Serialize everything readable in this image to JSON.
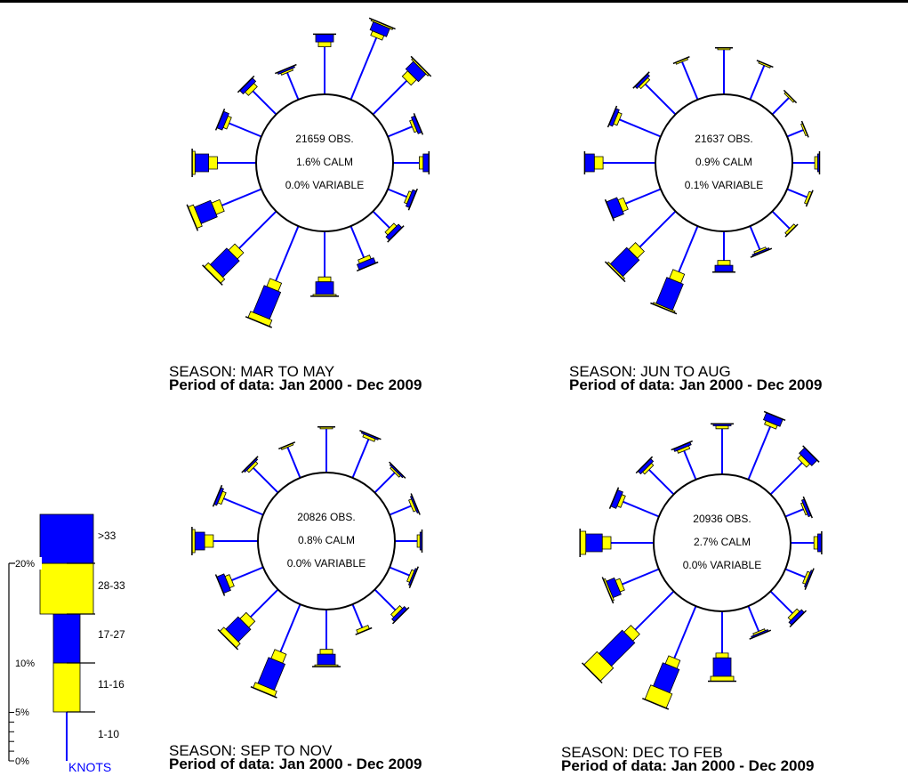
{
  "chart_data": {
    "type": "wind-rose",
    "direction_order": [
      "N",
      "NNE",
      "NE",
      "ENE",
      "E",
      "ESE",
      "SE",
      "SSE",
      "S",
      "SSW",
      "SW",
      "WSW",
      "W",
      "WNW",
      "NW",
      "NNW"
    ],
    "speed_classes": [
      "1-10",
      "11-16",
      "17-27",
      "28-33",
      ">33"
    ],
    "colors": {
      "spoke": "#0000ff",
      "yellow": "#ffff00",
      "blue": "#0000ff",
      "outline": "#000000"
    },
    "legend": {
      "unit_label": "KNOTS",
      "scale_labels": [
        {
          "pct": 0,
          "label": "0%"
        },
        {
          "pct": 5,
          "label": "5%"
        },
        {
          "pct": 10,
          "label": "10%"
        },
        {
          "pct": 20,
          "label": "20%"
        }
      ],
      "speed_labels": [
        {
          "label": "1-10"
        },
        {
          "label": "11-16"
        },
        {
          "label": "17-27"
        },
        {
          "label": "28-33"
        },
        {
          "label": ">33"
        }
      ]
    },
    "roses": [
      {
        "season": "SEASON: MAR TO MAY",
        "period": "Period of data: Jan 2000 - Dec 2009",
        "obs": "21659 OBS.",
        "calm": "1.6% CALM",
        "variable": "0.0% VARIABLE",
        "directions": [
          {
            "dir": "N",
            "pct": [
              4.9,
              0.5,
              0.8,
              0,
              0
            ]
          },
          {
            "dir": "NNE",
            "pct": [
              6.9,
              0.5,
              0.9,
              0.1,
              0
            ]
          },
          {
            "dir": "NE",
            "pct": [
              4.9,
              0.8,
              1.1,
              0.2,
              0
            ]
          },
          {
            "dir": "ENE",
            "pct": [
              2.7,
              0.3,
              0.4,
              0,
              0
            ]
          },
          {
            "dir": "E",
            "pct": [
              2.7,
              0.4,
              0.6,
              0,
              0
            ]
          },
          {
            "dir": "ESE",
            "pct": [
              2.1,
              0.3,
              0.4,
              0,
              0
            ]
          },
          {
            "dir": "SE",
            "pct": [
              2.4,
              0.4,
              0.5,
              0,
              0
            ]
          },
          {
            "dir": "SSE",
            "pct": [
              3.5,
              0.4,
              0.6,
              0,
              0
            ]
          },
          {
            "dir": "S",
            "pct": [
              4.7,
              0.5,
              1.3,
              0.1,
              0
            ]
          },
          {
            "dir": "SSW",
            "pct": [
              6.1,
              0.9,
              3.0,
              0.7,
              0
            ]
          },
          {
            "dir": "SW",
            "pct": [
              5.4,
              0.9,
              2.4,
              0.6,
              0
            ]
          },
          {
            "dir": "WSW",
            "pct": [
              4.4,
              0.9,
              1.8,
              0.6,
              0
            ]
          },
          {
            "dir": "W",
            "pct": [
              4.0,
              0.9,
              1.4,
              0.3,
              0
            ]
          },
          {
            "dir": "WNW",
            "pct": [
              3.6,
              0.4,
              0.6,
              0,
              0
            ]
          },
          {
            "dir": "NW",
            "pct": [
              3.4,
              0.5,
              0.5,
              0,
              0
            ]
          },
          {
            "dir": "NNW",
            "pct": [
              3.0,
              0.2,
              0.2,
              0,
              0
            ]
          }
        ]
      },
      {
        "season": "SEASON: JUN TO AUG",
        "period": "Period of data: Jan 2000 - Dec 2009",
        "obs": "21637 OBS.",
        "calm": "0.9% CALM",
        "variable": "0.1% VARIABLE",
        "directions": [
          {
            "dir": "N",
            "pct": [
              4.6,
              0.2,
              0,
              0,
              0
            ]
          },
          {
            "dir": "NNE",
            "pct": [
              3.8,
              0.2,
              0,
              0,
              0
            ]
          },
          {
            "dir": "NE",
            "pct": [
              2.4,
              0.2,
              0,
              0,
              0
            ]
          },
          {
            "dir": "ENE",
            "pct": [
              1.8,
              0.2,
              0,
              0,
              0
            ]
          },
          {
            "dir": "E",
            "pct": [
              2.3,
              0.3,
              0.2,
              0,
              0
            ]
          },
          {
            "dir": "ESE",
            "pct": [
              2.2,
              0.3,
              0,
              0,
              0
            ]
          },
          {
            "dir": "SE",
            "pct": [
              2.5,
              0.3,
              0,
              0,
              0
            ]
          },
          {
            "dir": "SSE",
            "pct": [
              2.6,
              0.2,
              0.1,
              0,
              0
            ]
          },
          {
            "dir": "S",
            "pct": [
              3.0,
              0.5,
              0.7,
              0,
              0
            ]
          },
          {
            "dir": "SSW",
            "pct": [
              5.1,
              1.0,
              2.9,
              0.1,
              0
            ]
          },
          {
            "dir": "SW",
            "pct": [
              5.2,
              1.0,
              2.4,
              0.2,
              0
            ]
          },
          {
            "dir": "WSW",
            "pct": [
              3.9,
              0.6,
              1.2,
              0,
              0
            ]
          },
          {
            "dir": "W",
            "pct": [
              5.4,
              0.9,
              1.0,
              0,
              0
            ]
          },
          {
            "dir": "WNW",
            "pct": [
              4.6,
              0.4,
              0.4,
              0,
              0
            ]
          },
          {
            "dir": "NW",
            "pct": [
              4.4,
              0.3,
              0.3,
              0,
              0
            ]
          },
          {
            "dir": "NNW",
            "pct": [
              4.2,
              0.2,
              0,
              0,
              0
            ]
          }
        ]
      },
      {
        "season": "SEASON: SEP TO NOV",
        "period": "Period of data: Jan 2000 - Dec 2009",
        "obs": "20826 OBS.",
        "calm": "0.8% CALM",
        "variable": "0.0% VARIABLE",
        "directions": [
          {
            "dir": "N",
            "pct": [
              4.5,
              0.2,
              0,
              0,
              0
            ]
          },
          {
            "dir": "NNE",
            "pct": [
              4.3,
              0.3,
              0.1,
              0,
              0
            ]
          },
          {
            "dir": "NE",
            "pct": [
              2.9,
              0.2,
              0.1,
              0,
              0
            ]
          },
          {
            "dir": "ENE",
            "pct": [
              2.4,
              0.3,
              0.1,
              0,
              0
            ]
          },
          {
            "dir": "E",
            "pct": [
              2.3,
              0.3,
              0.2,
              0,
              0
            ]
          },
          {
            "dir": "ESE",
            "pct": [
              2.2,
              0.3,
              0.2,
              0,
              0
            ]
          },
          {
            "dir": "SE",
            "pct": [
              3.0,
              0.4,
              0.4,
              0,
              0
            ]
          },
          {
            "dir": "SSE",
            "pct": [
              2.6,
              0.4,
              0,
              0,
              0
            ]
          },
          {
            "dir": "S",
            "pct": [
              4.1,
              0.5,
              1.1,
              0.1,
              0
            ]
          },
          {
            "dir": "SSW",
            "pct": [
              5.3,
              1.0,
              2.9,
              0.6,
              0
            ]
          },
          {
            "dir": "SW",
            "pct": [
              4.0,
              0.9,
              1.8,
              0.6,
              0
            ]
          },
          {
            "dir": "WSW",
            "pct": [
              3.5,
              0.5,
              0.8,
              0,
              0
            ]
          },
          {
            "dir": "W",
            "pct": [
              4.6,
              0.9,
              1.0,
              0.3,
              0
            ]
          },
          {
            "dir": "WNW",
            "pct": [
              4.4,
              0.4,
              0.3,
              0,
              0
            ]
          },
          {
            "dir": "NW",
            "pct": [
              3.6,
              0.3,
              0.2,
              0,
              0
            ]
          },
          {
            "dir": "NNW",
            "pct": [
              3.4,
              0.2,
              0,
              0,
              0
            ]
          }
        ]
      },
      {
        "season": "SEASON: DEC TO FEB",
        "period": "Period of data: Jan 2000 - Dec 2009",
        "obs": "20936 OBS.",
        "calm": "2.7% CALM",
        "variable": "0.0% VARIABLE",
        "directions": [
          {
            "dir": "N",
            "pct": [
              4.7,
              0.3,
              0.2,
              0,
              0
            ]
          },
          {
            "dir": "NNE",
            "pct": [
              5.9,
              0.4,
              0.8,
              0,
              0
            ]
          },
          {
            "dir": "NE",
            "pct": [
              4.6,
              0.5,
              0.8,
              0,
              0
            ]
          },
          {
            "dir": "ENE",
            "pct": [
              2.0,
              0.2,
              0.3,
              0,
              0
            ]
          },
          {
            "dir": "E",
            "pct": [
              2.4,
              0.4,
              0.4,
              0,
              0
            ]
          },
          {
            "dir": "ESE",
            "pct": [
              2.2,
              0.3,
              0.1,
              0,
              0
            ]
          },
          {
            "dir": "SE",
            "pct": [
              3.2,
              0.4,
              0.4,
              0,
              0
            ]
          },
          {
            "dir": "SSE",
            "pct": [
              2.8,
              0.2,
              0.1,
              0,
              0
            ]
          },
          {
            "dir": "S",
            "pct": [
              4.3,
              0.5,
              1.9,
              0.5,
              0
            ]
          },
          {
            "dir": "SSW",
            "pct": [
              5.8,
              0.9,
              2.6,
              1.6,
              0
            ]
          },
          {
            "dir": "SW",
            "pct": [
              5.6,
              1.0,
              3.4,
              1.9,
              0
            ]
          },
          {
            "dir": "WSW",
            "pct": [
              4.1,
              0.5,
              0.9,
              0.2,
              0
            ]
          },
          {
            "dir": "W",
            "pct": [
              4.4,
              0.9,
              1.7,
              0.6,
              0
            ]
          },
          {
            "dir": "WNW",
            "pct": [
              4.0,
              0.4,
              0.6,
              0,
              0
            ]
          },
          {
            "dir": "NW",
            "pct": [
              3.6,
              0.3,
              0.4,
              0,
              0
            ]
          },
          {
            "dir": "NNW",
            "pct": [
              3.2,
              0.3,
              0.3,
              0,
              0
            ]
          }
        ]
      }
    ]
  }
}
